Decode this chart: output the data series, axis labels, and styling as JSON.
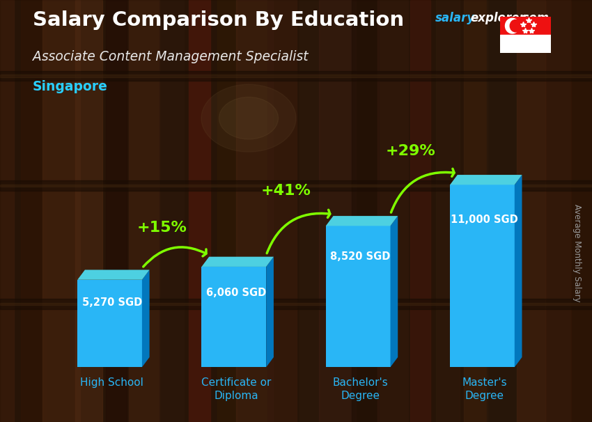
{
  "title": "Salary Comparison By Education",
  "subtitle": "Associate Content Management Specialist",
  "location": "Singapore",
  "ylabel": "Average Monthly Salary",
  "categories": [
    "High School",
    "Certificate or\nDiploma",
    "Bachelor's\nDegree",
    "Master's\nDegree"
  ],
  "values": [
    5270,
    6060,
    8520,
    11000
  ],
  "value_labels": [
    "5,270 SGD",
    "6,060 SGD",
    "8,520 SGD",
    "11,000 SGD"
  ],
  "pct_labels": [
    "+15%",
    "+41%",
    "+29%"
  ],
  "face_color": "#29B6F6",
  "side_color": "#0277BD",
  "top_color": "#4DD0E1",
  "bg_base": "#3d2510",
  "title_color": "#ffffff",
  "subtitle_color": "#e8e8e8",
  "location_color": "#29CFFF",
  "salary_color": "#29B6F6",
  "explorer_color": "#ffffff",
  "pct_color": "#7FFF00",
  "value_color": "#ffffff",
  "cat_color": "#29B6F6",
  "ylabel_color": "#999999",
  "fig_width": 8.5,
  "fig_height": 6.06,
  "dpi": 100,
  "ylim_max": 14000
}
